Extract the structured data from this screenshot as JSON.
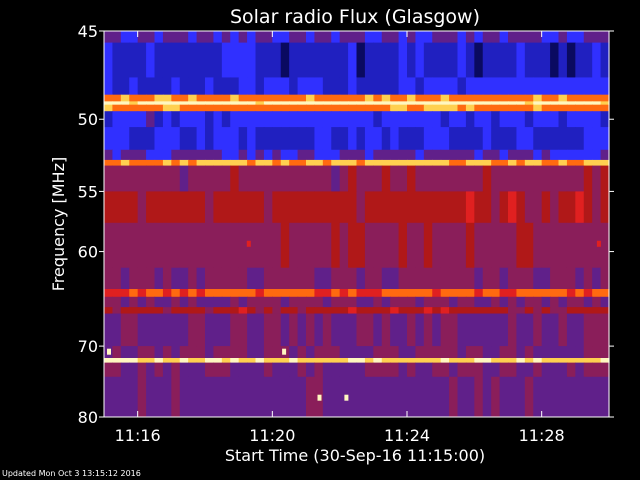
{
  "chart_data": {
    "type": "heatmap",
    "title": "Solar radio Flux (Glasgow)",
    "xlabel": "Start Time (30-Sep-16 11:15:00)",
    "ylabel": "Frequency [MHz]",
    "x_unit": "minutes after 11:15:00",
    "xlim": [
      0,
      15
    ],
    "ylim": [
      80,
      45
    ],
    "y_scale": "reciprocal",
    "x_ticks": [
      {
        "value": 1,
        "label": "11:16"
      },
      {
        "value": 5,
        "label": "11:20"
      },
      {
        "value": 9,
        "label": "11:24"
      },
      {
        "value": 13,
        "label": "11:28"
      }
    ],
    "y_ticks": [
      {
        "value": 45,
        "label": "45"
      },
      {
        "value": 50,
        "label": "50"
      },
      {
        "value": 55,
        "label": "55"
      },
      {
        "value": 60,
        "label": "60"
      },
      {
        "value": 70,
        "label": "70"
      },
      {
        "value": 80,
        "label": "80"
      }
    ],
    "colormap": [
      "#0a0a60",
      "#2020c0",
      "#3030ff",
      "#60208a",
      "#8a1e5a",
      "#b01818",
      "#e02020",
      "#ff6a10",
      "#ffd050",
      "#fff7c0"
    ],
    "frequency_bands": [
      {
        "f_from": 45.0,
        "f_to": 45.6,
        "intensity": 0.3
      },
      {
        "f_from": 45.6,
        "f_to": 47.5,
        "intensity": 0.12
      },
      {
        "f_from": 47.5,
        "f_to": 48.5,
        "intensity": 0.18
      },
      {
        "f_from": 48.5,
        "f_to": 48.9,
        "intensity": 0.8
      },
      {
        "f_from": 48.9,
        "f_to": 49.1,
        "intensity": 1.0
      },
      {
        "f_from": 49.1,
        "f_to": 49.5,
        "intensity": 0.8
      },
      {
        "f_from": 49.5,
        "f_to": 50.5,
        "intensity": 0.22
      },
      {
        "f_from": 50.5,
        "f_to": 52.0,
        "intensity": 0.16
      },
      {
        "f_from": 52.0,
        "f_to": 52.7,
        "intensity": 0.3
      },
      {
        "f_from": 52.7,
        "f_to": 53.1,
        "intensity": 0.85
      },
      {
        "f_from": 53.1,
        "f_to": 55.0,
        "intensity": 0.45
      },
      {
        "f_from": 55.0,
        "f_to": 57.5,
        "intensity": 0.55
      },
      {
        "f_from": 57.5,
        "f_to": 61.5,
        "intensity": 0.46
      },
      {
        "f_from": 61.5,
        "f_to": 63.6,
        "intensity": 0.42
      },
      {
        "f_from": 63.6,
        "f_to": 64.4,
        "intensity": 0.75
      },
      {
        "f_from": 64.4,
        "f_to": 65.5,
        "intensity": 0.4
      },
      {
        "f_from": 65.5,
        "f_to": 66.2,
        "intensity": 0.55
      },
      {
        "f_from": 66.2,
        "f_to": 70.0,
        "intensity": 0.36
      },
      {
        "f_from": 70.0,
        "f_to": 71.5,
        "intensity": 0.42
      },
      {
        "f_from": 71.5,
        "f_to": 72.1,
        "intensity": 0.92
      },
      {
        "f_from": 72.1,
        "f_to": 74.0,
        "intensity": 0.4
      },
      {
        "f_from": 74.0,
        "f_to": 80.0,
        "intensity": 0.34
      }
    ],
    "bursts": [
      {
        "t": 0.15,
        "f": 70.7,
        "intensity": 0.95
      },
      {
        "t": 5.35,
        "f": 70.7,
        "intensity": 0.95
      },
      {
        "t": 6.4,
        "f": 77.0,
        "intensity": 0.95
      },
      {
        "t": 7.2,
        "f": 77.0,
        "intensity": 0.95
      },
      {
        "t": 4.3,
        "f": 59.3,
        "intensity": 0.7
      },
      {
        "t": 14.7,
        "f": 59.3,
        "intensity": 0.7
      }
    ]
  },
  "footer": "Updated Mon Oct  3 13:15:12 2016"
}
